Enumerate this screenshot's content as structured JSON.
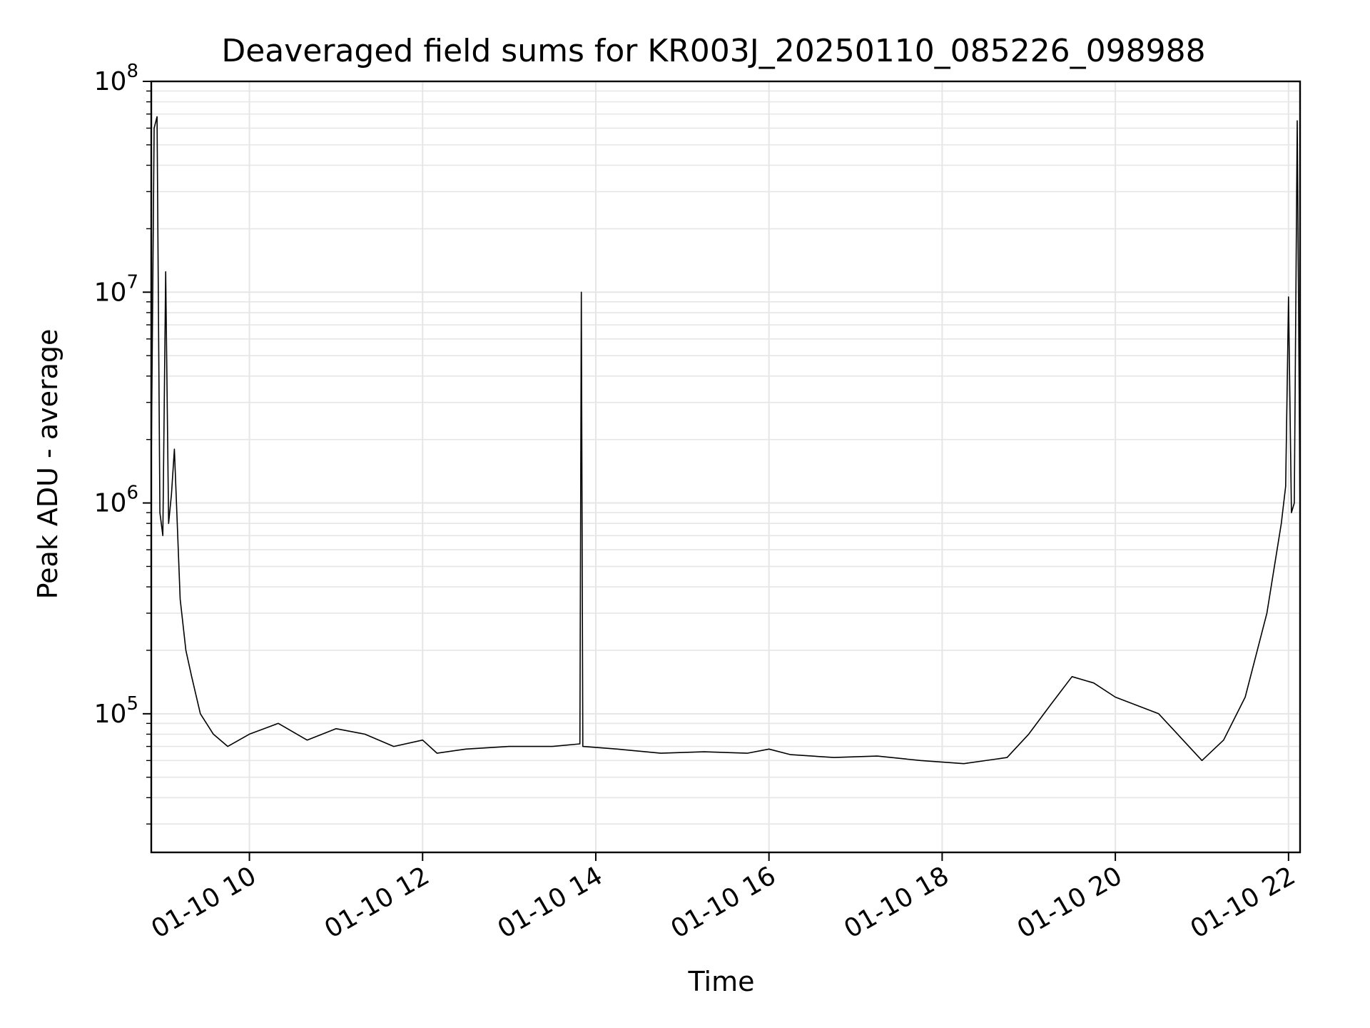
{
  "chart_data": {
    "type": "line",
    "title": "Deaveraged field sums for KR003J_20250110_085226_098988",
    "xlabel": "Time",
    "ylabel": "Peak ADU - average",
    "y_scale": "log",
    "grid": true,
    "legend": "none",
    "line_color": "#000000",
    "grid_color": "#e6e6e6",
    "xlim": [
      "2025-01-10 08:52",
      "2025-01-10 22:08"
    ],
    "ylim": [
      22000,
      100000000
    ],
    "x_ticks": [
      {
        "label": "01-10 10",
        "value": "2025-01-10 10:00"
      },
      {
        "label": "01-10 12",
        "value": "2025-01-10 12:00"
      },
      {
        "label": "01-10 14",
        "value": "2025-01-10 14:00"
      },
      {
        "label": "01-10 16",
        "value": "2025-01-10 16:00"
      },
      {
        "label": "01-10 18",
        "value": "2025-01-10 18:00"
      },
      {
        "label": "01-10 20",
        "value": "2025-01-10 20:00"
      },
      {
        "label": "01-10 22",
        "value": "2025-01-10 22:00"
      }
    ],
    "y_ticks": [
      {
        "base": "10",
        "exp": "5",
        "value": 100000
      },
      {
        "base": "10",
        "exp": "6",
        "value": 1000000
      },
      {
        "base": "10",
        "exp": "7",
        "value": 10000000
      },
      {
        "base": "10",
        "exp": "8",
        "value": 100000000
      }
    ],
    "series": [
      {
        "x": [
          "2025-01-10 08:52",
          "2025-01-10 08:54",
          "2025-01-10 08:56",
          "2025-01-10 08:58",
          "2025-01-10 09:00",
          "2025-01-10 09:02",
          "2025-01-10 09:04",
          "2025-01-10 09:06",
          "2025-01-10 09:08",
          "2025-01-10 09:12",
          "2025-01-10 09:16",
          "2025-01-10 09:20",
          "2025-01-10 09:26",
          "2025-01-10 09:35",
          "2025-01-10 09:45",
          "2025-01-10 10:00",
          "2025-01-10 10:20",
          "2025-01-10 10:40",
          "2025-01-10 11:00",
          "2025-01-10 11:20",
          "2025-01-10 11:40",
          "2025-01-10 12:00",
          "2025-01-10 12:10",
          "2025-01-10 12:30",
          "2025-01-10 13:00",
          "2025-01-10 13:30",
          "2025-01-10 13:49",
          "2025-01-10 13:50",
          "2025-01-10 13:51",
          "2025-01-10 14:15",
          "2025-01-10 14:45",
          "2025-01-10 15:15",
          "2025-01-10 15:45",
          "2025-01-10 16:00",
          "2025-01-10 16:15",
          "2025-01-10 16:45",
          "2025-01-10 17:15",
          "2025-01-10 17:45",
          "2025-01-10 18:15",
          "2025-01-10 18:45",
          "2025-01-10 19:00",
          "2025-01-10 19:15",
          "2025-01-10 19:30",
          "2025-01-10 19:45",
          "2025-01-10 20:00",
          "2025-01-10 20:30",
          "2025-01-10 21:00",
          "2025-01-10 21:15",
          "2025-01-10 21:30",
          "2025-01-10 21:45",
          "2025-01-10 21:55",
          "2025-01-10 21:58",
          "2025-01-10 22:00",
          "2025-01-10 22:02",
          "2025-01-10 22:04",
          "2025-01-10 22:06",
          "2025-01-10 22:08"
        ],
        "y": [
          1500000,
          60000000,
          68000000,
          900000,
          700000,
          12500000,
          800000,
          1100000,
          1800000,
          350000,
          200000,
          150000,
          100000,
          80000,
          70000,
          80000,
          90000,
          75000,
          85000,
          80000,
          70000,
          75000,
          65000,
          68000,
          70000,
          70000,
          72000,
          10000000,
          70000,
          68000,
          65000,
          66000,
          65000,
          68000,
          64000,
          62000,
          63000,
          60000,
          58000,
          62000,
          80000,
          110000,
          150000,
          140000,
          120000,
          100000,
          60000,
          75000,
          120000,
          300000,
          800000,
          1200000,
          9500000,
          900000,
          1000000,
          65000000,
          850000
        ]
      }
    ]
  }
}
